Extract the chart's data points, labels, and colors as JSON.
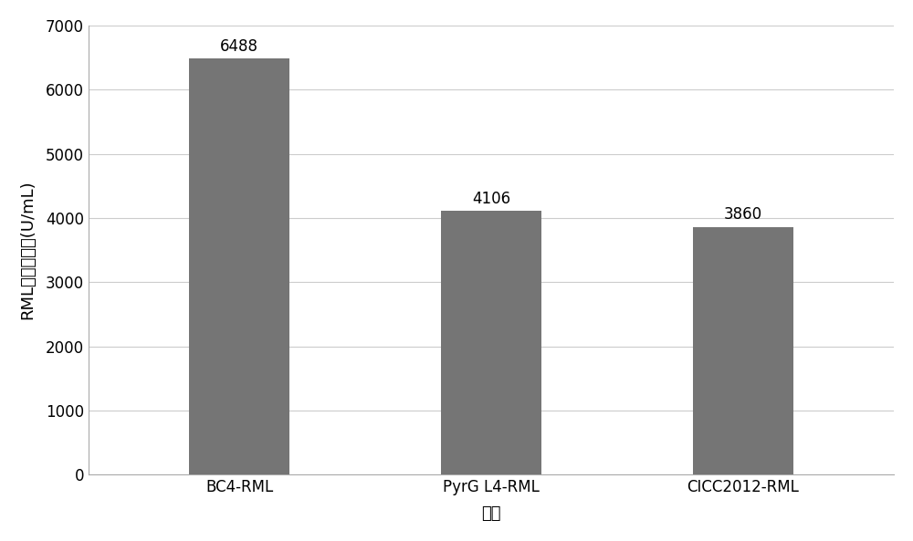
{
  "categories": [
    "BC4-RML",
    "PyrG L4-RML",
    "CICC2012-RML"
  ],
  "values": [
    6488,
    4106,
    3860
  ],
  "bar_color": "#757575",
  "ylabel": "RML脂肪酶活性(U/mL)",
  "xlabel": "菌株",
  "ylim": [
    0,
    7000
  ],
  "yticks": [
    0,
    1000,
    2000,
    3000,
    4000,
    5000,
    6000,
    7000
  ],
  "bar_width": 0.4,
  "label_fontsize": 13,
  "tick_fontsize": 12,
  "axis_label_fontsize": 13,
  "background_color": "#ffffff",
  "grid_color": "#cccccc",
  "value_label_fontsize": 12
}
